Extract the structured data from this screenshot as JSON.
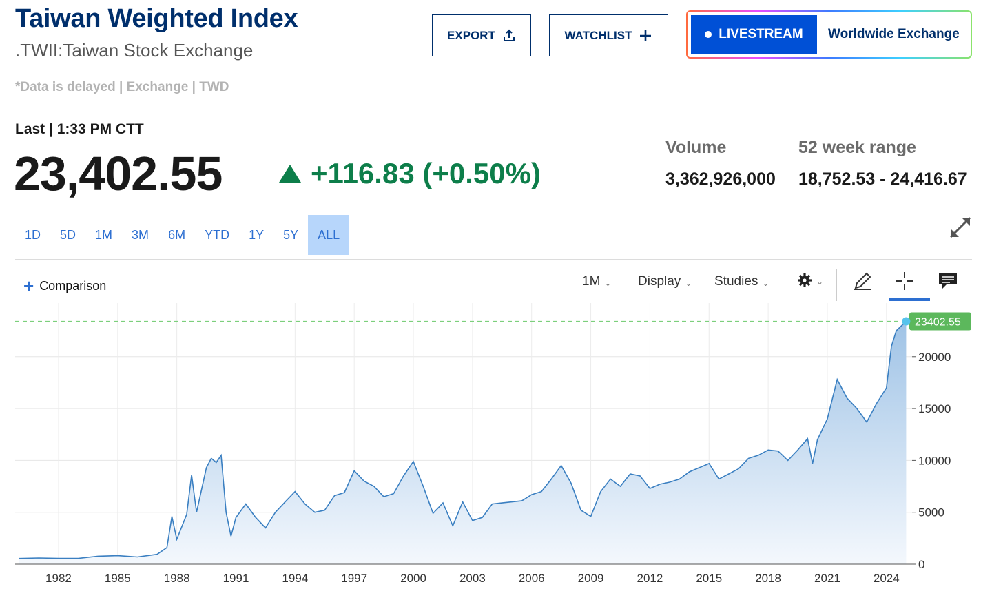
{
  "header": {
    "title": "Taiwan Weighted Index",
    "subtitle": ".TWII:Taiwan Stock Exchange",
    "delayed_note": "*Data is delayed | Exchange | TWD"
  },
  "actions": {
    "export_label": "EXPORT",
    "watchlist_label": "WATCHLIST",
    "livestream_label": "LIVESTREAM",
    "worldwide_label": "Worldwide Exchange"
  },
  "quote": {
    "last_label": "Last | 1:33 PM CTT",
    "price": "23,402.55",
    "change": "+116.83 (+0.50%)",
    "change_color": "#0d7e4a"
  },
  "stats": {
    "volume_label": "Volume",
    "volume_value": "3,362,926,000",
    "range_label": "52 week range",
    "range_value": "18,752.53 - 24,416.67"
  },
  "ranges": [
    "1D",
    "5D",
    "1M",
    "3M",
    "6M",
    "YTD",
    "1Y",
    "5Y",
    "ALL"
  ],
  "active_range": "ALL",
  "toolbar": {
    "comparison_label": "Comparison",
    "interval_label": "1M",
    "display_label": "Display",
    "studies_label": "Studies",
    "icons": [
      "gear-icon",
      "pencil-icon",
      "crosshair-icon",
      "comment-icon"
    ]
  },
  "chart_data": {
    "type": "area",
    "series": [
      {
        "x": [
          1980,
          1981,
          1982,
          1983,
          1984,
          1985,
          1986,
          1987,
          1987.5,
          1987.75,
          1988,
          1988.25,
          1988.5,
          1988.75,
          1989,
          1989.5,
          1989.75,
          1990,
          1990.25,
          1990.5,
          1990.75,
          1991,
          1991.5,
          1992,
          1992.5,
          1993,
          1993.5,
          1994,
          1994.5,
          1995,
          1995.5,
          1996,
          1996.5,
          1997,
          1997.5,
          1998,
          1998.5,
          1999,
          1999.5,
          2000,
          2000.5,
          2001,
          2001.5,
          2002,
          2002.5,
          2003,
          2003.5,
          2004,
          2004.5,
          2005,
          2005.5,
          2006,
          2006.5,
          2007,
          2007.5,
          2008,
          2008.5,
          2009,
          2009.5,
          2010,
          2010.5,
          2011,
          2011.5,
          2012,
          2012.5,
          2013,
          2013.5,
          2014,
          2014.5,
          2015,
          2015.5,
          2016,
          2016.5,
          2017,
          2017.5,
          2018,
          2018.5,
          2019,
          2019.5,
          2020,
          2020.25,
          2020.5,
          2021,
          2021.5,
          2022,
          2022.5,
          2023,
          2023.5,
          2024,
          2024.25,
          2024.5,
          2025
        ],
        "y": [
          550,
          600,
          560,
          560,
          770,
          820,
          700,
          950,
          1600,
          4600,
          2400,
          3600,
          4800,
          8600,
          5000,
          9300,
          10200,
          9800,
          10500,
          5000,
          2700,
          4500,
          5800,
          4500,
          3500,
          5000,
          6000,
          7000,
          5800,
          5000,
          5200,
          6600,
          6900,
          9000,
          8000,
          7500,
          6500,
          6800,
          8500,
          9900,
          7500,
          4900,
          5900,
          3700,
          6000,
          4200,
          4500,
          5800,
          5900,
          6000,
          6100,
          6700,
          7000,
          8200,
          9500,
          7800,
          5200,
          4600,
          7000,
          8200,
          7500,
          8700,
          8500,
          7300,
          7700,
          7900,
          8200,
          8900,
          9300,
          9700,
          8200,
          8700,
          9200,
          10200,
          10500,
          11000,
          10900,
          10000,
          11000,
          12100,
          9700,
          12000,
          14000,
          17800,
          16000,
          15000,
          13700,
          15500,
          17000,
          21000,
          22500,
          23402.55
        ]
      }
    ],
    "last_value_label": "23402.55",
    "y_ticks": [
      0,
      5000,
      10000,
      15000,
      20000
    ],
    "x_ticks": [
      1982,
      1985,
      1988,
      1991,
      1994,
      1997,
      2000,
      2003,
      2006,
      2009,
      2012,
      2015,
      2018,
      2021,
      2024
    ],
    "xlim": [
      1979.8,
      2025.3
    ],
    "ylim": [
      0,
      24500
    ],
    "grid": true,
    "line_color": "#3a7fc1",
    "fill_top_color": "#9fc3e6",
    "fill_bottom_color": "#f4f8fd",
    "reference_line_color": "#7ccf7c",
    "label_bg_color": "#5cb85c"
  }
}
